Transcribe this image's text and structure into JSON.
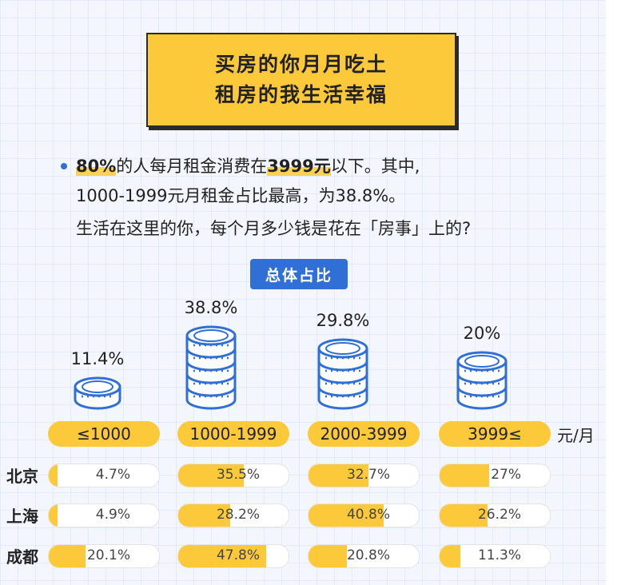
{
  "title": {
    "line1": "买房的你月月吃土",
    "line2": "租房的我生活幸福"
  },
  "intro": {
    "line1_part1": "80%",
    "line1_part2": "的人每月租金消费在",
    "line1_part3": "3999元",
    "line1_part4": "以下。其中,",
    "line2": "1000-1999元月租金占比最高，为38.8%。",
    "line3": "生活在这里的你，每个月多少钱是花在「房事」上的?"
  },
  "overall_label": "总体占比",
  "unit_label": "元/月",
  "colors": {
    "accent": "#fbc93a",
    "blue": "#2f6fd6",
    "coin_stroke": "#2f6fd6"
  },
  "chart_data": [
    {
      "type": "bar",
      "title": "总体占比",
      "categories": [
        "≤1000",
        "1000-1999",
        "2000-3999",
        "3999≤"
      ],
      "values": [
        11.4,
        38.8,
        29.8,
        20
      ],
      "labels": [
        "11.4%",
        "38.8%",
        "29.8%",
        "20%"
      ]
    },
    {
      "type": "bar",
      "categories": [
        "≤1000",
        "1000-1999",
        "2000-3999",
        "3999≤"
      ],
      "series": [
        {
          "name": "北京",
          "values": [
            4.7,
            35.5,
            32.7,
            27
          ],
          "labels": [
            "4.7%",
            "35.5%",
            "32.7%",
            "27%"
          ]
        },
        {
          "name": "上海",
          "values": [
            4.9,
            28.2,
            40.8,
            26.2
          ],
          "labels": [
            "4.9%",
            "28.2%",
            "40.8%",
            "26.2%"
          ]
        },
        {
          "name": "成都",
          "values": [
            20.1,
            47.8,
            20.8,
            11.3
          ],
          "labels": [
            "20.1%",
            "47.8%",
            "20.8%",
            "11.3%"
          ]
        }
      ]
    }
  ]
}
